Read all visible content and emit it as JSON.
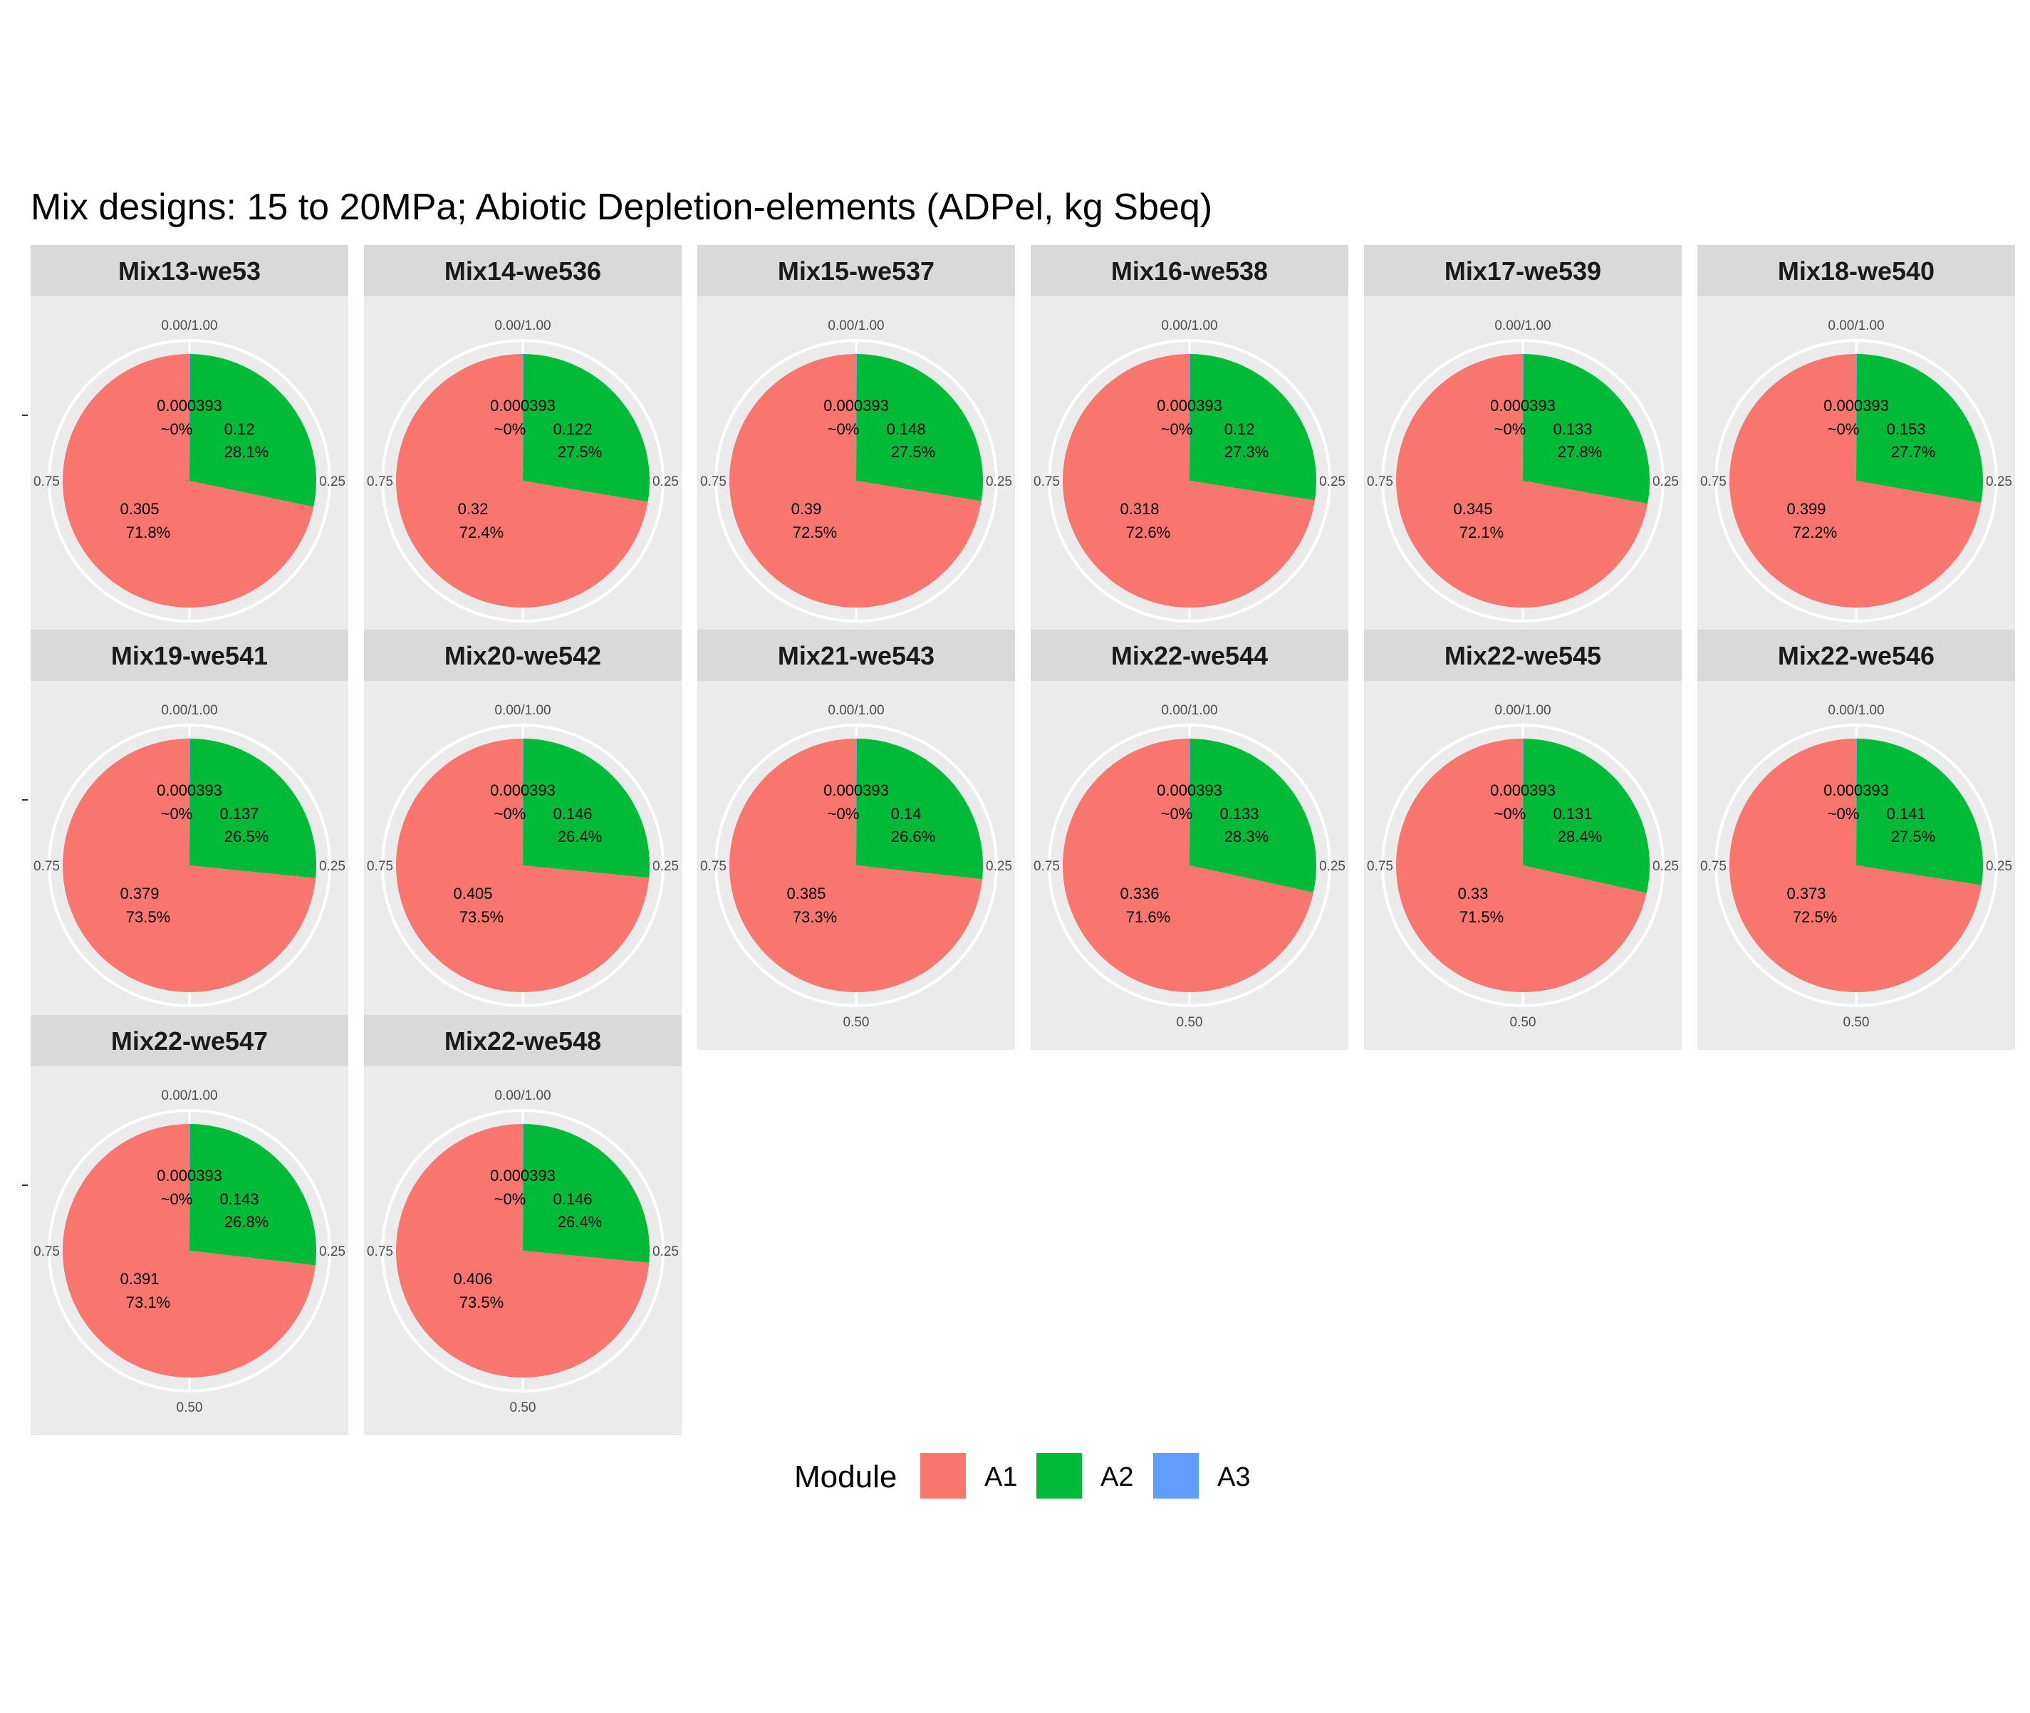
{
  "chart_data": {
    "type": "pie",
    "title": "Mix designs: 15 to 20MPa; Abiotic Depletion-elements (ADPel, kg Sbeq)",
    "legend": {
      "title": "Module",
      "position": "bottom",
      "entries": [
        {
          "name": "A1",
          "color": "#F8766D"
        },
        {
          "name": "A2",
          "color": "#00BA38"
        },
        {
          "name": "A3",
          "color": "#619CFF"
        }
      ]
    },
    "theta_ticks": [
      "0.00/1.00",
      "0.25",
      "0.50",
      "0.75"
    ],
    "panels": [
      {
        "name": "Mix13-we53",
        "slices": [
          {
            "module": "A1",
            "value": "0.305",
            "percent": "71.8%"
          },
          {
            "module": "A2",
            "value": "0.12",
            "percent": "28.1%"
          },
          {
            "module": "A3",
            "value": "0.000393",
            "percent": "~0%"
          }
        ]
      },
      {
        "name": "Mix14-we536",
        "slices": [
          {
            "module": "A1",
            "value": "0.32",
            "percent": "72.4%"
          },
          {
            "module": "A2",
            "value": "0.122",
            "percent": "27.5%"
          },
          {
            "module": "A3",
            "value": "0.000393",
            "percent": "~0%"
          }
        ]
      },
      {
        "name": "Mix15-we537",
        "slices": [
          {
            "module": "A1",
            "value": "0.39",
            "percent": "72.5%"
          },
          {
            "module": "A2",
            "value": "0.148",
            "percent": "27.5%"
          },
          {
            "module": "A3",
            "value": "0.000393",
            "percent": "~0%"
          }
        ]
      },
      {
        "name": "Mix16-we538",
        "slices": [
          {
            "module": "A1",
            "value": "0.318",
            "percent": "72.6%"
          },
          {
            "module": "A2",
            "value": "0.12",
            "percent": "27.3%"
          },
          {
            "module": "A3",
            "value": "0.000393",
            "percent": "~0%"
          }
        ]
      },
      {
        "name": "Mix17-we539",
        "slices": [
          {
            "module": "A1",
            "value": "0.345",
            "percent": "72.1%"
          },
          {
            "module": "A2",
            "value": "0.133",
            "percent": "27.8%"
          },
          {
            "module": "A3",
            "value": "0.000393",
            "percent": "~0%"
          }
        ]
      },
      {
        "name": "Mix18-we540",
        "slices": [
          {
            "module": "A1",
            "value": "0.399",
            "percent": "72.2%"
          },
          {
            "module": "A2",
            "value": "0.153",
            "percent": "27.7%"
          },
          {
            "module": "A3",
            "value": "0.000393",
            "percent": "~0%"
          }
        ]
      },
      {
        "name": "Mix19-we541",
        "slices": [
          {
            "module": "A1",
            "value": "0.379",
            "percent": "73.5%"
          },
          {
            "module": "A2",
            "value": "0.137",
            "percent": "26.5%"
          },
          {
            "module": "A3",
            "value": "0.000393",
            "percent": "~0%"
          }
        ]
      },
      {
        "name": "Mix20-we542",
        "slices": [
          {
            "module": "A1",
            "value": "0.405",
            "percent": "73.5%"
          },
          {
            "module": "A2",
            "value": "0.146",
            "percent": "26.4%"
          },
          {
            "module": "A3",
            "value": "0.000393",
            "percent": "~0%"
          }
        ]
      },
      {
        "name": "Mix21-we543",
        "slices": [
          {
            "module": "A1",
            "value": "0.385",
            "percent": "73.3%"
          },
          {
            "module": "A2",
            "value": "0.14",
            "percent": "26.6%"
          },
          {
            "module": "A3",
            "value": "0.000393",
            "percent": "~0%"
          }
        ]
      },
      {
        "name": "Mix22-we544",
        "slices": [
          {
            "module": "A1",
            "value": "0.336",
            "percent": "71.6%"
          },
          {
            "module": "A2",
            "value": "0.133",
            "percent": "28.3%"
          },
          {
            "module": "A3",
            "value": "0.000393",
            "percent": "~0%"
          }
        ]
      },
      {
        "name": "Mix22-we545",
        "slices": [
          {
            "module": "A1",
            "value": "0.33",
            "percent": "71.5%"
          },
          {
            "module": "A2",
            "value": "0.131",
            "percent": "28.4%"
          },
          {
            "module": "A3",
            "value": "0.000393",
            "percent": "~0%"
          }
        ]
      },
      {
        "name": "Mix22-we546",
        "slices": [
          {
            "module": "A1",
            "value": "0.373",
            "percent": "72.5%"
          },
          {
            "module": "A2",
            "value": "0.141",
            "percent": "27.5%"
          },
          {
            "module": "A3",
            "value": "0.000393",
            "percent": "~0%"
          }
        ]
      },
      {
        "name": "Mix22-we547",
        "slices": [
          {
            "module": "A1",
            "value": "0.391",
            "percent": "73.1%"
          },
          {
            "module": "A2",
            "value": "0.143",
            "percent": "26.8%"
          },
          {
            "module": "A3",
            "value": "0.000393",
            "percent": "~0%"
          }
        ]
      },
      {
        "name": "Mix22-we548",
        "slices": [
          {
            "module": "A1",
            "value": "0.406",
            "percent": "73.5%"
          },
          {
            "module": "A2",
            "value": "0.146",
            "percent": "26.4%"
          },
          {
            "module": "A3",
            "value": "0.000393",
            "percent": "~0%"
          }
        ]
      }
    ]
  }
}
